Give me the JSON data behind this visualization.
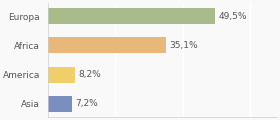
{
  "categories": [
    "Europa",
    "Africa",
    "America",
    "Asia"
  ],
  "values": [
    49.5,
    35.1,
    8.2,
    7.2
  ],
  "labels": [
    "49,5%",
    "35,1%",
    "8,2%",
    "7,2%"
  ],
  "bar_colors": [
    "#a8bb8a",
    "#e8b87a",
    "#f0cf6a",
    "#7a8fc0"
  ],
  "background_color": "#f9f9f9",
  "xlim": [
    0,
    68
  ],
  "bar_height": 0.55,
  "label_fontsize": 6.5,
  "category_fontsize": 6.5,
  "text_color": "#555555",
  "grid_color": "#ffffff",
  "spine_color": "#cccccc"
}
